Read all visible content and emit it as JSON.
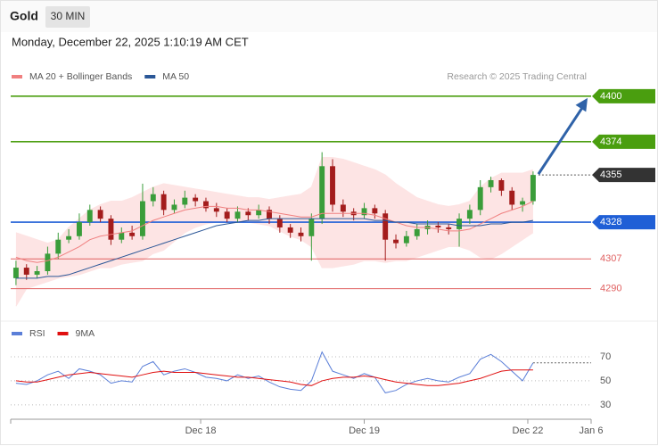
{
  "header": {
    "title": "Gold",
    "timeframe": "30 MIN",
    "datetime": "Monday, December 22, 2025 1:10:19 AM CET"
  },
  "chart_data": [
    {
      "type": "candlestick",
      "note": "Research © 2025 Trading Central",
      "x": [
        0,
        1,
        2,
        3,
        4,
        5,
        6,
        7,
        8,
        9,
        10,
        11,
        12,
        13,
        14,
        15,
        16,
        17,
        18,
        19,
        20,
        21,
        22,
        23,
        24,
        25,
        26,
        27,
        28,
        29,
        30,
        31,
        32,
        33,
        34,
        35,
        36,
        37,
        38,
        39,
        40,
        41,
        42,
        43,
        44,
        45,
        46,
        47,
        48,
        49
      ],
      "xlim": [
        -0.5,
        54.5
      ],
      "ylim": [
        4274,
        4404
      ],
      "up_color": "#3a9d3a",
      "down_color": "#a31c1c",
      "open": [
        4296,
        4302,
        4298,
        4300,
        4310,
        4318,
        4320,
        4328,
        4335,
        4330,
        4318,
        4322,
        4320,
        4340,
        4344,
        4335,
        4338,
        4342,
        4340,
        4336,
        4334,
        4330,
        4334,
        4332,
        4335,
        4330,
        4325,
        4322,
        4320,
        4330,
        4360,
        4338,
        4334,
        4332,
        4336,
        4333,
        4318,
        4316,
        4320,
        4324,
        4326,
        4325,
        4324,
        4330,
        4335,
        4348,
        4352,
        4346,
        4338,
        4340
      ],
      "high": [
        4306,
        4304,
        4303,
        4314,
        4322,
        4324,
        4333,
        4338,
        4337,
        4332,
        4325,
        4326,
        4350,
        4348,
        4346,
        4341,
        4346,
        4344,
        4342,
        4339,
        4336,
        4337,
        4336,
        4338,
        4337,
        4332,
        4327,
        4325,
        4333,
        4368,
        4364,
        4341,
        4336,
        4339,
        4338,
        4335,
        4321,
        4323,
        4327,
        4329,
        4328,
        4327,
        4333,
        4338,
        4352,
        4354,
        4353,
        4348,
        4342,
        4357
      ],
      "low": [
        4292,
        4295,
        4296,
        4298,
        4307,
        4316,
        4318,
        4326,
        4328,
        4315,
        4316,
        4318,
        4318,
        4337,
        4332,
        4333,
        4336,
        4337,
        4334,
        4331,
        4328,
        4328,
        4329,
        4330,
        4327,
        4322,
        4319,
        4317,
        4306,
        4327,
        4334,
        4331,
        4329,
        4330,
        4330,
        4306,
        4313,
        4314,
        4318,
        4321,
        4322,
        4321,
        4314,
        4327,
        4332,
        4345,
        4343,
        4335,
        4334,
        4338
      ],
      "close": [
        4302,
        4298,
        4300,
        4310,
        4318,
        4320,
        4328,
        4335,
        4330,
        4318,
        4322,
        4320,
        4340,
        4344,
        4335,
        4338,
        4342,
        4340,
        4336,
        4334,
        4330,
        4334,
        4332,
        4335,
        4330,
        4325,
        4322,
        4320,
        4330,
        4360,
        4338,
        4334,
        4332,
        4336,
        4333,
        4318,
        4316,
        4320,
        4324,
        4326,
        4325,
        4324,
        4330,
        4335,
        4348,
        4352,
        4346,
        4338,
        4340,
        4355
      ],
      "series": [
        {
          "name": "MA 20 + Bollinger Bands",
          "color": "#f08080",
          "band_color": "#fde4e4",
          "values": [
            4308,
            4306,
            4305,
            4306,
            4308,
            4311,
            4314,
            4318,
            4320,
            4321,
            4322,
            4323,
            4326,
            4329,
            4331,
            4333,
            4335,
            4336,
            4337,
            4337,
            4336,
            4336,
            4335,
            4335,
            4334,
            4333,
            4332,
            4331,
            4331,
            4333,
            4333,
            4333,
            4333,
            4333,
            4332,
            4330,
            4328,
            4326,
            4325,
            4325,
            4324,
            4323,
            4323,
            4324,
            4327,
            4330,
            4333,
            4335,
            4337,
            4340
          ],
          "upper": [
            4322,
            4320,
            4318,
            4316,
            4318,
            4325,
            4330,
            4335,
            4338,
            4340,
            4340,
            4342,
            4345,
            4348,
            4350,
            4349,
            4348,
            4347,
            4346,
            4345,
            4344,
            4343,
            4342,
            4342,
            4341,
            4342,
            4343,
            4344,
            4348,
            4365,
            4365,
            4364,
            4362,
            4360,
            4358,
            4355,
            4350,
            4346,
            4342,
            4340,
            4338,
            4337,
            4338,
            4340,
            4348,
            4353,
            4356,
            4356,
            4356,
            4358
          ],
          "lower": [
            4280,
            4290,
            4292,
            4294,
            4296,
            4297,
            4298,
            4300,
            4302,
            4302,
            4304,
            4305,
            4306,
            4310,
            4312,
            4317,
            4322,
            4325,
            4327,
            4328,
            4328,
            4328,
            4328,
            4327,
            4326,
            4323,
            4320,
            4318,
            4314,
            4302,
            4302,
            4303,
            4304,
            4306,
            4306,
            4305,
            4306,
            4306,
            4308,
            4310,
            4312,
            4314,
            4314,
            4312,
            4308,
            4307,
            4310,
            4314,
            4318,
            4322
          ]
        },
        {
          "name": "MA 50",
          "color": "#2b5797",
          "values": [
            4296,
            4296,
            4296,
            4297,
            4297,
            4298,
            4300,
            4302,
            4304,
            4306,
            4308,
            4310,
            4312,
            4314,
            4316,
            4318,
            4320,
            4322,
            4324,
            4326,
            4327,
            4328,
            4329,
            4329,
            4330,
            4330,
            4330,
            4330,
            4330,
            4330,
            4330,
            4330,
            4330,
            4330,
            4329,
            4329,
            4328,
            4328,
            4327,
            4327,
            4327,
            4327,
            4326,
            4326,
            4326,
            4327,
            4327,
            4328,
            4328,
            4329
          ]
        }
      ],
      "levels": [
        {
          "value": 4400,
          "color": "#4a9e0f",
          "boxed": true
        },
        {
          "value": 4374,
          "color": "#4a9e0f",
          "boxed": true
        },
        {
          "value": 4355,
          "color": "#333333",
          "boxed": true,
          "dotted": true
        },
        {
          "value": 4328,
          "color": "#1f5fd6",
          "boxed": true
        },
        {
          "value": 4307,
          "color": "#e06060",
          "boxed": false
        },
        {
          "value": 4290,
          "color": "#e06060",
          "boxed": false
        }
      ]
    },
    {
      "type": "line",
      "x": [
        0,
        1,
        2,
        3,
        4,
        5,
        6,
        7,
        8,
        9,
        10,
        11,
        12,
        13,
        14,
        15,
        16,
        17,
        18,
        19,
        20,
        21,
        22,
        23,
        24,
        25,
        26,
        27,
        28,
        29,
        30,
        31,
        32,
        33,
        34,
        35,
        36,
        37,
        38,
        39,
        40,
        41,
        42,
        43,
        44,
        45,
        46,
        47,
        48,
        49
      ],
      "xlim": [
        -0.5,
        54.5
      ],
      "xticks": [
        {
          "value": 17.5,
          "label": "Dec 18"
        },
        {
          "value": 33,
          "label": "Dec 19"
        },
        {
          "value": 48.5,
          "label": "Dec 22"
        },
        {
          "value": 54.5,
          "label": "Jan 6"
        }
      ],
      "ylim": [
        18,
        96
      ],
      "yticks": [
        30,
        50,
        70
      ],
      "grid": true,
      "series": [
        {
          "name": "RSI",
          "color": "#5b7fd8",
          "values": [
            48,
            47,
            50,
            55,
            58,
            52,
            60,
            58,
            55,
            48,
            50,
            49,
            62,
            66,
            55,
            58,
            60,
            57,
            53,
            52,
            50,
            55,
            52,
            54,
            49,
            45,
            43,
            42,
            50,
            74,
            58,
            55,
            52,
            56,
            53,
            40,
            42,
            47,
            50,
            52,
            50,
            49,
            53,
            56,
            68,
            72,
            66,
            58,
            50,
            65
          ]
        },
        {
          "name": "9MA",
          "color": "#e01010",
          "values": [
            50,
            49,
            49,
            51,
            53,
            55,
            56,
            57,
            56,
            55,
            54,
            53,
            55,
            57,
            58,
            57,
            57,
            57,
            56,
            55,
            54,
            53,
            53,
            52,
            51,
            50,
            49,
            47,
            46,
            50,
            52,
            53,
            53,
            54,
            53,
            51,
            49,
            48,
            47,
            46,
            46,
            47,
            48,
            50,
            52,
            55,
            58,
            59,
            59,
            59
          ]
        }
      ]
    }
  ]
}
